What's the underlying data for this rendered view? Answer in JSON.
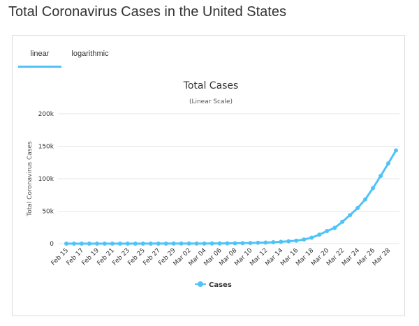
{
  "page": {
    "title": "Total Coronavirus Cases in the United States"
  },
  "tabs": [
    {
      "label": "linear",
      "active": true
    },
    {
      "label": "logarithmic",
      "active": false
    }
  ],
  "chart_data": {
    "type": "line",
    "title": "Total Cases",
    "subtitle": "(Linear Scale)",
    "xlabel": "",
    "ylabel": "Total Coronavirus Cases",
    "ylim": [
      0,
      200000
    ],
    "yticks": [
      0,
      50000,
      100000,
      150000,
      200000
    ],
    "ytick_labels": [
      "0",
      "50k",
      "100k",
      "150k",
      "200k"
    ],
    "xtick_labels": [
      "Feb 15",
      "Feb 17",
      "Feb 19",
      "Feb 21",
      "Feb 23",
      "Feb 25",
      "Feb 27",
      "Feb 29",
      "Mar 02",
      "Mar 04",
      "Mar 06",
      "Mar 08",
      "Mar 10",
      "Mar 12",
      "Mar 14",
      "Mar 16",
      "Mar 18",
      "Mar 20",
      "Mar 22",
      "Mar 24",
      "Mar 26",
      "Mar 28"
    ],
    "grid": true,
    "legend": "bottom-center",
    "color": "#4fc3f7",
    "x": [
      "Feb 15",
      "Feb 16",
      "Feb 17",
      "Feb 18",
      "Feb 19",
      "Feb 20",
      "Feb 21",
      "Feb 22",
      "Feb 23",
      "Feb 24",
      "Feb 25",
      "Feb 26",
      "Feb 27",
      "Feb 28",
      "Feb 29",
      "Mar 01",
      "Mar 02",
      "Mar 03",
      "Mar 04",
      "Mar 05",
      "Mar 06",
      "Mar 07",
      "Mar 08",
      "Mar 09",
      "Mar 10",
      "Mar 11",
      "Mar 12",
      "Mar 13",
      "Mar 14",
      "Mar 15",
      "Mar 16",
      "Mar 17",
      "Mar 18",
      "Mar 19",
      "Mar 20",
      "Mar 21",
      "Mar 22",
      "Mar 23",
      "Mar 24",
      "Mar 25",
      "Mar 26",
      "Mar 27",
      "Mar 28",
      "Mar 29"
    ],
    "series": [
      {
        "name": "Cases",
        "values": [
          15,
          15,
          15,
          15,
          15,
          15,
          35,
          35,
          35,
          53,
          53,
          59,
          60,
          62,
          70,
          76,
          100,
          124,
          158,
          221,
          319,
          435,
          541,
          704,
          994,
          1301,
          1630,
          2183,
          2770,
          3613,
          4596,
          6344,
          9197,
          13779,
          19367,
          24192,
          33592,
          43781,
          54856,
          68211,
          85435,
          104126,
          123578,
          143491
        ]
      }
    ]
  }
}
